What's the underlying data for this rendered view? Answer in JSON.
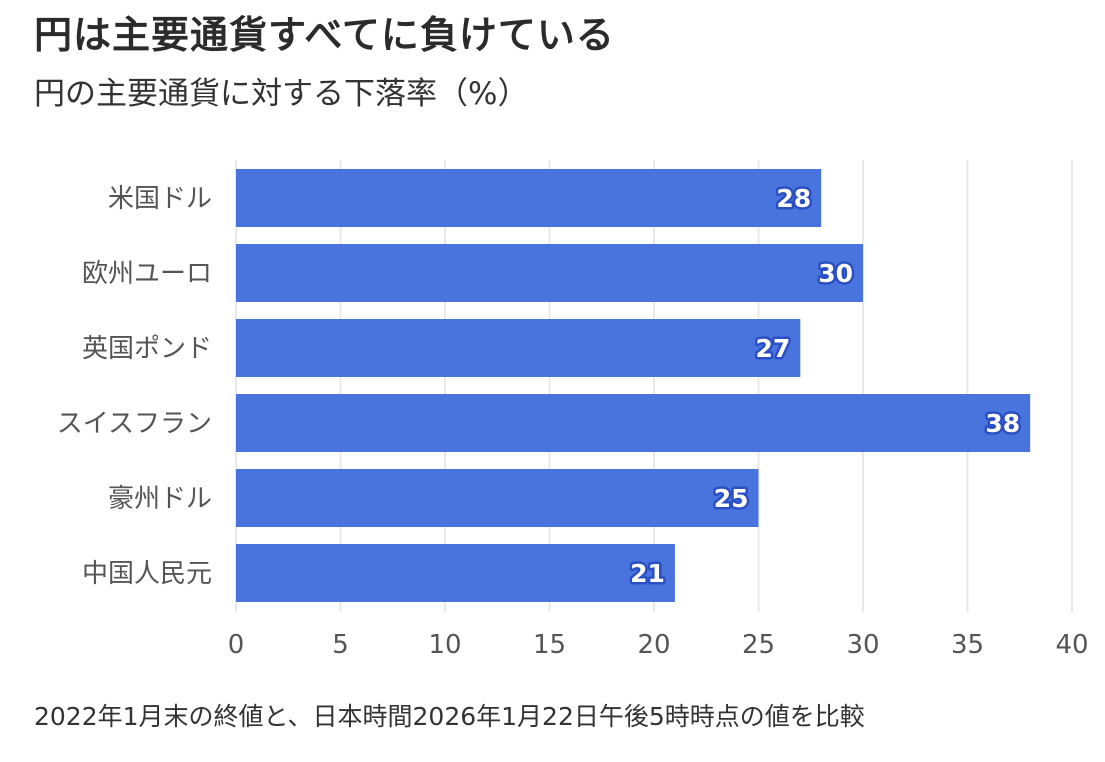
{
  "header": {
    "title": "円は主要通貨すべてに負けている",
    "subtitle": "円の主要通貨に対する下落率（%）"
  },
  "footer": {
    "note": "2022年1月末の終値と、日本時間2026年1月22日午後5時時点の値を比較"
  },
  "colors": {
    "bar": "#4a74dd",
    "grid": "#e8e8e8",
    "label_outline": "#2a4fc4"
  },
  "chart_data": {
    "type": "bar",
    "orientation": "horizontal",
    "title": "円は主要通貨すべてに負けている",
    "subtitle": "円の主要通貨に対する下落率（%）",
    "categories": [
      "米国ドル",
      "欧州ユーロ",
      "英国ポンド",
      "スイスフラン",
      "豪州ドル",
      "中国人民元"
    ],
    "values": [
      28,
      30,
      27,
      38,
      25,
      21
    ],
    "data_labels": [
      "28",
      "30",
      "27",
      "38",
      "25",
      "21"
    ],
    "xlim": [
      0,
      40
    ],
    "xticks": [
      0,
      5,
      10,
      15,
      20,
      25,
      30,
      35,
      40
    ],
    "xtick_labels": [
      "0",
      "5",
      "10",
      "15",
      "20",
      "25",
      "30",
      "35",
      "40"
    ],
    "xlabel": "",
    "ylabel": "",
    "grid": true,
    "legend": "none"
  }
}
